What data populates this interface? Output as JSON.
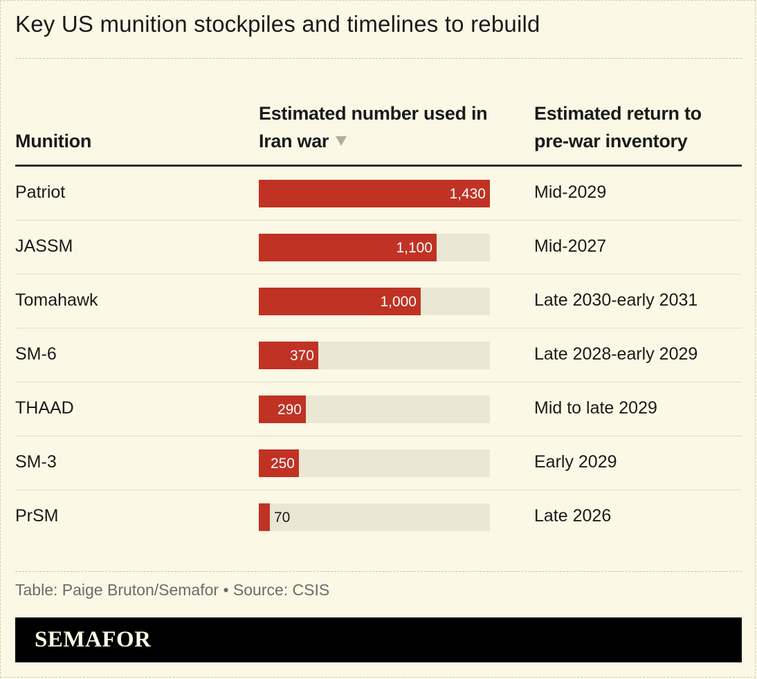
{
  "title": "Key US munition stockpiles and timelines to rebuild",
  "columns": {
    "munition": "Munition",
    "used_line1": "Estimated number used in",
    "used_line2": "Iran war",
    "return_line1": "Estimated return to",
    "return_line2": "pre-war inventory"
  },
  "sort_icon": "triangle-down-icon",
  "colors": {
    "background": "#fcf8e6",
    "bar": "#c03224",
    "track": "#ebe7d5",
    "brand_bar": "#000000"
  },
  "chart_data": {
    "type": "table",
    "xlim": [
      0,
      1430
    ],
    "rows": [
      {
        "munition": "Patriot",
        "used": 1430,
        "label": "1,430",
        "return": "Mid-2029"
      },
      {
        "munition": "JASSM",
        "used": 1100,
        "label": "1,100",
        "return": "Mid-2027"
      },
      {
        "munition": "Tomahawk",
        "used": 1000,
        "label": "1,000",
        "return": "Late 2030-early 2031"
      },
      {
        "munition": "SM-6",
        "used": 370,
        "label": "370",
        "return": "Late 2028-early 2029"
      },
      {
        "munition": "THAAD",
        "used": 290,
        "label": "290",
        "return": "Mid to late 2029"
      },
      {
        "munition": "SM-3",
        "used": 250,
        "label": "250",
        "return": "Early 2029"
      },
      {
        "munition": "PrSM",
        "used": 70,
        "label": "70",
        "return": "Late 2026"
      }
    ]
  },
  "footer": {
    "credit": "Table: Paige Bruton/Semafor • Source: CSIS",
    "brand": "SEMAFOR"
  }
}
